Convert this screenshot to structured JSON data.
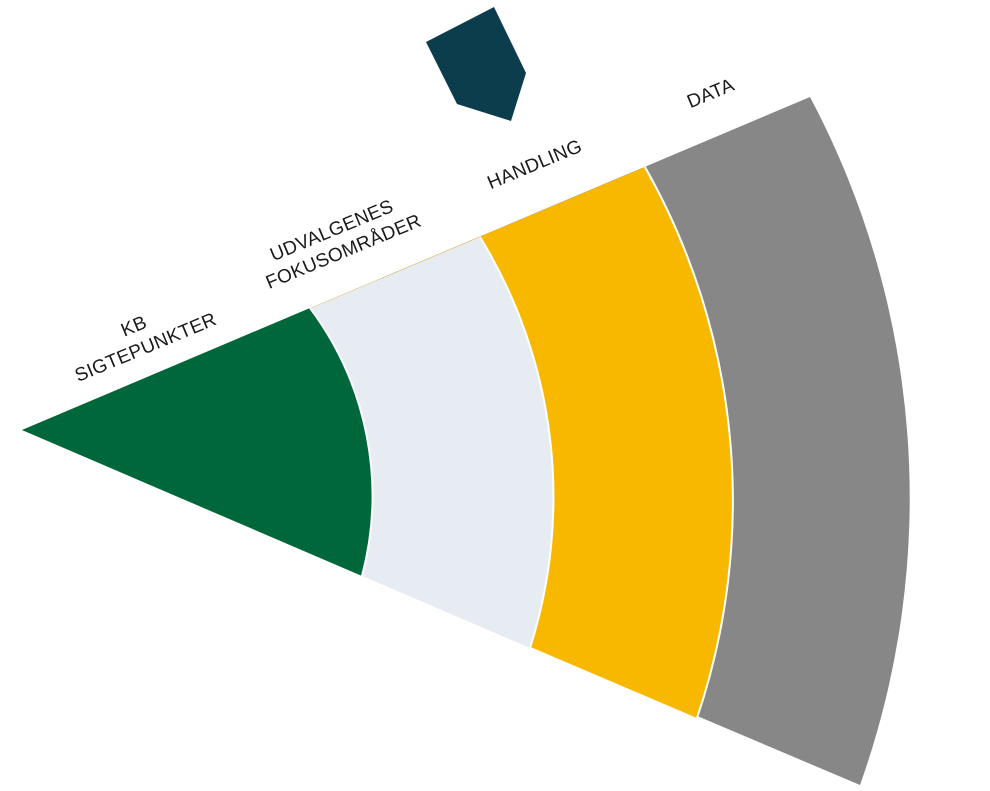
{
  "segments": [
    {
      "id": "kb-sigtepunkter",
      "lines": [
        "KB",
        "SIGTEPUNKTER"
      ],
      "color": "#00673A"
    },
    {
      "id": "udvalgenes-fokusomraader",
      "lines": [
        "UDVALGENES",
        "FOKUSOMRÅDER"
      ],
      "color": "#E6ECF2"
    },
    {
      "id": "handling",
      "lines": [
        "HANDLING"
      ],
      "color": "#F9B800"
    },
    {
      "id": "data",
      "lines": [
        "DATA"
      ],
      "color": "#878787"
    }
  ],
  "marker": {
    "color": "#0B3D4D"
  },
  "separator_color": "#ffffff"
}
